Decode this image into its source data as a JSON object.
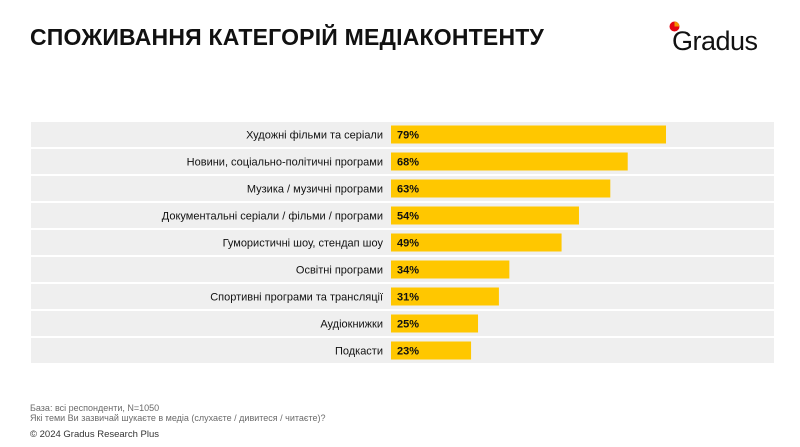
{
  "header": {
    "title": "СПОЖИВАННЯ КАТЕГОРІЙ МЕДІАКОНТЕНТУ",
    "logo_text": "Gradus"
  },
  "colors": {
    "bar": "#FFC700",
    "row_band": "#EFEFEF",
    "text": "#111111",
    "logo_dot_orange": "#F39200",
    "logo_dot_red": "#E30613"
  },
  "chart_data": {
    "type": "bar",
    "orientation": "horizontal",
    "categories": [
      "Художні фільми та серіали",
      "Новини, соціально-політичні програми",
      "Музика / музичні програми",
      "Документальні серіали / фільми / програми",
      "Гумористичні шоу, стендап шоу",
      "Освітні програми",
      "Спортивні програми та трансляції",
      "Аудіокнижки",
      "Подкасти"
    ],
    "values": [
      79,
      68,
      63,
      54,
      49,
      34,
      31,
      25,
      23
    ],
    "value_labels": [
      "79%",
      "68%",
      "63%",
      "54%",
      "49%",
      "34%",
      "31%",
      "25%",
      "23%"
    ],
    "unit": "%",
    "xlim": [
      0,
      100
    ],
    "grid": false,
    "legend": "none"
  },
  "footer": {
    "base": "База: всі респонденти, N=1050",
    "question": "Які теми Ви зазвичай шукаєте в медіа (слухаєте / дивитеся / читаєте)?",
    "copyright": "© 2024 Gradus Research Plus"
  }
}
